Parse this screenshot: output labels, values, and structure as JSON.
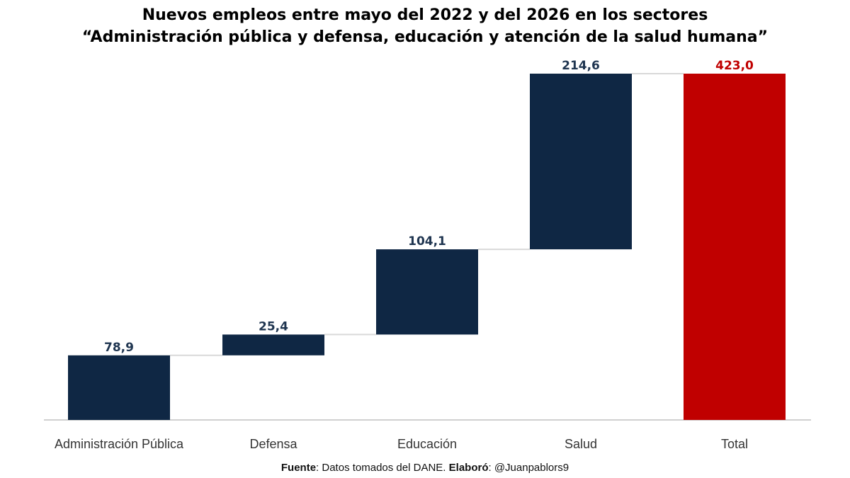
{
  "title": {
    "line1": "Nuevos empleos entre mayo del 2022 y del 2026 en los sectores",
    "line2": "“Administración pública y defensa, educación y atención de la salud humana”"
  },
  "footer": {
    "source_label": "Fuente",
    "source_text": ": Datos tomados del DANE. ",
    "author_label": "Elaboró",
    "author_text": ": @Juanpablors9"
  },
  "chart_data": {
    "type": "waterfall",
    "categories": [
      "Administración Pública",
      "Defensa",
      "Educación",
      "Salud",
      "Total"
    ],
    "values": [
      78.9,
      25.4,
      104.1,
      214.6,
      423.0
    ],
    "labels": [
      "78,9",
      "25,4",
      "104,1",
      "214,6",
      "423,0"
    ],
    "is_total": [
      false,
      false,
      false,
      false,
      true
    ],
    "colors": {
      "increment": "#0f2744",
      "total": "#c00000",
      "increment_label": "#1f3550",
      "total_label": "#c00000",
      "connector": "#d9d9d9",
      "axis": "#d0d0d0",
      "category_label": "#333333"
    },
    "ylim": [
      0,
      423.0
    ],
    "grid": false,
    "legend": "none"
  }
}
